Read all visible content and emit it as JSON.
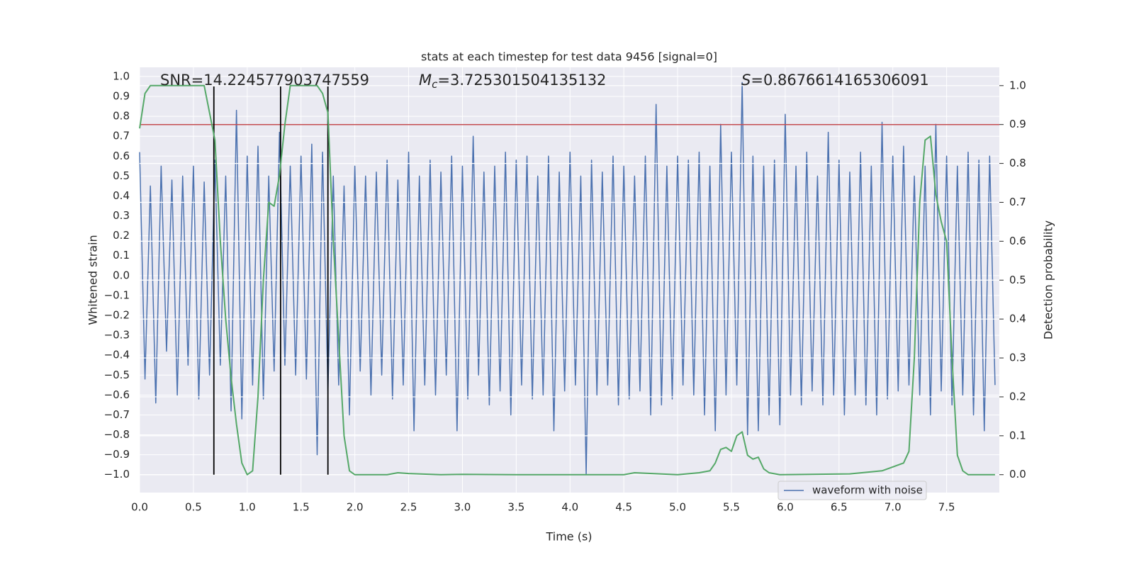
{
  "chart_data": {
    "type": "line",
    "title": "stats at each timestep for test data 9456 [signal=0]",
    "xlabel": "Time (s)",
    "ylabel": "Whitened strain",
    "y2label": "Detection probability",
    "xlim": [
      0,
      7.99
    ],
    "ylim": [
      -1.09,
      1.046
    ],
    "y2lim": [
      -0.046,
      1.047
    ],
    "grid": true,
    "legend": "lower right",
    "xticks": [
      {
        "value": 0,
        "label": "0.0"
      },
      0.5,
      {
        "value": 1,
        "label": "1.0"
      },
      1.5,
      {
        "value": 2,
        "label": "2.0"
      },
      2.5,
      {
        "value": 3,
        "label": "3.0"
      },
      3.5,
      {
        "value": 4,
        "label": "4.0"
      },
      4.5,
      {
        "value": 5,
        "label": "5.0"
      },
      5.5,
      {
        "value": 6,
        "label": "6.0"
      },
      6.5,
      {
        "value": 7,
        "label": "7.0"
      },
      7.5
    ],
    "yticks": [
      {
        "value": -1,
        "label": "−1.0"
      },
      {
        "value": -0.9,
        "label": "−0.9"
      },
      {
        "value": -0.8,
        "label": "−0.8"
      },
      {
        "value": -0.7,
        "label": "−0.7"
      },
      {
        "value": -0.6,
        "label": "−0.6"
      },
      {
        "value": -0.5,
        "label": "−0.5"
      },
      {
        "value": -0.4,
        "label": "−0.4"
      },
      {
        "value": -0.3,
        "label": "−0.3"
      },
      {
        "value": -0.2,
        "label": "−0.2"
      },
      {
        "value": -0.1,
        "label": "−0.1"
      },
      {
        "value": 0,
        "label": "0.0"
      },
      0.1,
      0.2,
      0.3,
      0.4,
      0.5,
      0.6,
      0.7,
      0.8,
      0.9,
      {
        "value": 1,
        "label": "1.0"
      }
    ],
    "y2ticks": [
      {
        "value": 0,
        "label": "0.0"
      },
      0.1,
      0.2,
      0.3,
      0.4,
      0.5,
      0.6,
      0.7,
      0.8,
      0.9,
      {
        "value": 1,
        "label": "1.0"
      }
    ],
    "series": [
      {
        "name": "waveform with noise",
        "color": "#4c72b0",
        "x": [
          0,
          0.05,
          0.1,
          0.15,
          0.2,
          0.25,
          0.3,
          0.35,
          0.4,
          0.45,
          0.5,
          0.55,
          0.6,
          0.65,
          0.7,
          0.75,
          0.8,
          0.85,
          0.9,
          0.95,
          1,
          1.05,
          1.1,
          1.15,
          1.2,
          1.25,
          1.3,
          1.35,
          1.4,
          1.45,
          1.5,
          1.55,
          1.6,
          1.65,
          1.7,
          1.75,
          1.8,
          1.85,
          1.9,
          1.95,
          2,
          2.05,
          2.1,
          2.15,
          2.2,
          2.25,
          2.3,
          2.35,
          2.4,
          2.45,
          2.5,
          2.55,
          2.6,
          2.65,
          2.7,
          2.75,
          2.8,
          2.85,
          2.9,
          2.95,
          3,
          3.05,
          3.1,
          3.15,
          3.2,
          3.25,
          3.3,
          3.35,
          3.4,
          3.45,
          3.5,
          3.55,
          3.6,
          3.65,
          3.7,
          3.75,
          3.8,
          3.85,
          3.9,
          3.95,
          4,
          4.05,
          4.1,
          4.15,
          4.2,
          4.25,
          4.3,
          4.35,
          4.4,
          4.45,
          4.5,
          4.55,
          4.6,
          4.65,
          4.7,
          4.75,
          4.8,
          4.85,
          4.9,
          4.95,
          5,
          5.05,
          5.1,
          5.15,
          5.2,
          5.25,
          5.3,
          5.35,
          5.4,
          5.45,
          5.5,
          5.55,
          5.6,
          5.65,
          5.7,
          5.75,
          5.8,
          5.85,
          5.9,
          5.95,
          6,
          6.05,
          6.1,
          6.15,
          6.2,
          6.25,
          6.3,
          6.35,
          6.4,
          6.45,
          6.5,
          6.55,
          6.6,
          6.65,
          6.7,
          6.75,
          6.8,
          6.85,
          6.9,
          6.95,
          7,
          7.05,
          7.1,
          7.15,
          7.2,
          7.25,
          7.3,
          7.35,
          7.4,
          7.45,
          7.5,
          7.55,
          7.6,
          7.65,
          7.7,
          7.75,
          7.8,
          7.85,
          7.9,
          7.95
        ],
        "values": [
          0.62,
          -0.52,
          0.45,
          -0.64,
          0.55,
          -0.38,
          0.48,
          -0.6,
          0.5,
          -0.45,
          0.55,
          -0.62,
          0.47,
          -0.5,
          0.58,
          -0.45,
          0.5,
          -0.68,
          0.83,
          -0.72,
          0.6,
          -0.55,
          0.65,
          -0.62,
          0.5,
          -0.48,
          0.72,
          -0.45,
          0.55,
          -0.5,
          0.6,
          -0.52,
          0.66,
          -0.9,
          0.62,
          -0.58,
          0.5,
          -0.55,
          0.45,
          -0.7,
          0.55,
          -0.48,
          0.5,
          -0.6,
          0.52,
          -0.5,
          0.58,
          -0.62,
          0.48,
          -0.55,
          0.62,
          -0.78,
          0.5,
          -0.55,
          0.58,
          -0.6,
          0.52,
          -0.5,
          0.6,
          -0.78,
          0.55,
          -0.62,
          0.7,
          -0.5,
          0.52,
          -0.65,
          0.55,
          -0.58,
          0.62,
          -0.7,
          0.58,
          -0.55,
          0.6,
          -0.62,
          0.5,
          -0.6,
          0.6,
          -0.78,
          0.52,
          -0.58,
          0.62,
          -0.55,
          0.5,
          -1.0,
          0.58,
          -0.6,
          0.52,
          -0.55,
          0.6,
          -0.65,
          0.55,
          -0.62,
          0.5,
          -0.58,
          0.6,
          -0.7,
          0.86,
          -0.65,
          0.55,
          -0.62,
          0.6,
          -0.55,
          0.58,
          -0.6,
          0.62,
          -0.7,
          0.55,
          -0.78,
          0.76,
          -0.6,
          0.62,
          -0.55,
          0.97,
          -0.8,
          0.6,
          -0.78,
          0.55,
          -0.7,
          0.58,
          -0.75,
          0.81,
          -0.6,
          0.55,
          -0.65,
          0.62,
          -0.58,
          0.5,
          -0.65,
          0.72,
          -0.6,
          0.58,
          -0.7,
          0.52,
          -0.6,
          0.62,
          -0.65,
          0.55,
          -0.7,
          0.77,
          -0.62,
          0.6,
          -0.58,
          0.65,
          -0.55,
          0.5,
          -0.6,
          0.55,
          -0.7,
          0.76,
          -0.58,
          0.6,
          -0.65,
          0.55,
          -0.6,
          0.62,
          -0.7,
          0.58,
          -0.78,
          0.6,
          -0.55
        ]
      },
      {
        "color": "#55a868",
        "axis": "y2",
        "x": [
          0,
          0.05,
          0.1,
          0.6,
          0.65,
          0.7,
          0.75,
          0.8,
          0.85,
          0.9,
          0.95,
          1.0,
          1.05,
          1.1,
          1.15,
          1.2,
          1.25,
          1.3,
          1.35,
          1.4,
          1.65,
          1.7,
          1.75,
          1.8,
          1.85,
          1.9,
          1.95,
          2.0,
          2.1,
          2.3,
          2.4,
          2.5,
          2.8,
          3.0,
          3.5,
          4.0,
          4.5,
          4.6,
          5.0,
          5.2,
          5.3,
          5.35,
          5.4,
          5.45,
          5.5,
          5.55,
          5.6,
          5.65,
          5.7,
          5.75,
          5.8,
          5.85,
          5.95,
          6.6,
          6.9,
          7.0,
          7.1,
          7.15,
          7.2,
          7.25,
          7.3,
          7.35,
          7.4,
          7.45,
          7.5,
          7.55,
          7.6,
          7.65,
          7.7,
          7.95
        ],
        "values": [
          0.89,
          0.98,
          1.0,
          1.0,
          0.93,
          0.86,
          0.6,
          0.4,
          0.25,
          0.13,
          0.03,
          0.0,
          0.01,
          0.2,
          0.5,
          0.7,
          0.69,
          0.77,
          0.9,
          1.0,
          1.0,
          0.98,
          0.93,
          0.6,
          0.35,
          0.1,
          0.01,
          0.0,
          0.0,
          0.0,
          0.005,
          0.003,
          0.0,
          0.001,
          0.0,
          0.0,
          0.0,
          0.005,
          0.0,
          0.005,
          0.01,
          0.03,
          0.065,
          0.07,
          0.06,
          0.1,
          0.11,
          0.05,
          0.04,
          0.045,
          0.015,
          0.005,
          0.0,
          0.002,
          0.01,
          0.02,
          0.03,
          0.06,
          0.3,
          0.7,
          0.86,
          0.87,
          0.72,
          0.65,
          0.6,
          0.3,
          0.05,
          0.01,
          0.0,
          0.0
        ]
      }
    ],
    "threshold": {
      "value": 0.9,
      "axis": "y2",
      "color": "#c44e52"
    },
    "vlines": {
      "x": [
        0.69,
        1.31,
        1.75
      ],
      "ymin": -1.0,
      "ymax": 0.95,
      "color": "#000000"
    },
    "annotations": [
      {
        "text": "SNR=14.224577903747559"
      },
      {
        "symbol": "M",
        "subscript": "c",
        "text": "=3.725301504135132"
      },
      {
        "symbol": "S",
        "text": "=0.8676614165306091"
      }
    ]
  }
}
